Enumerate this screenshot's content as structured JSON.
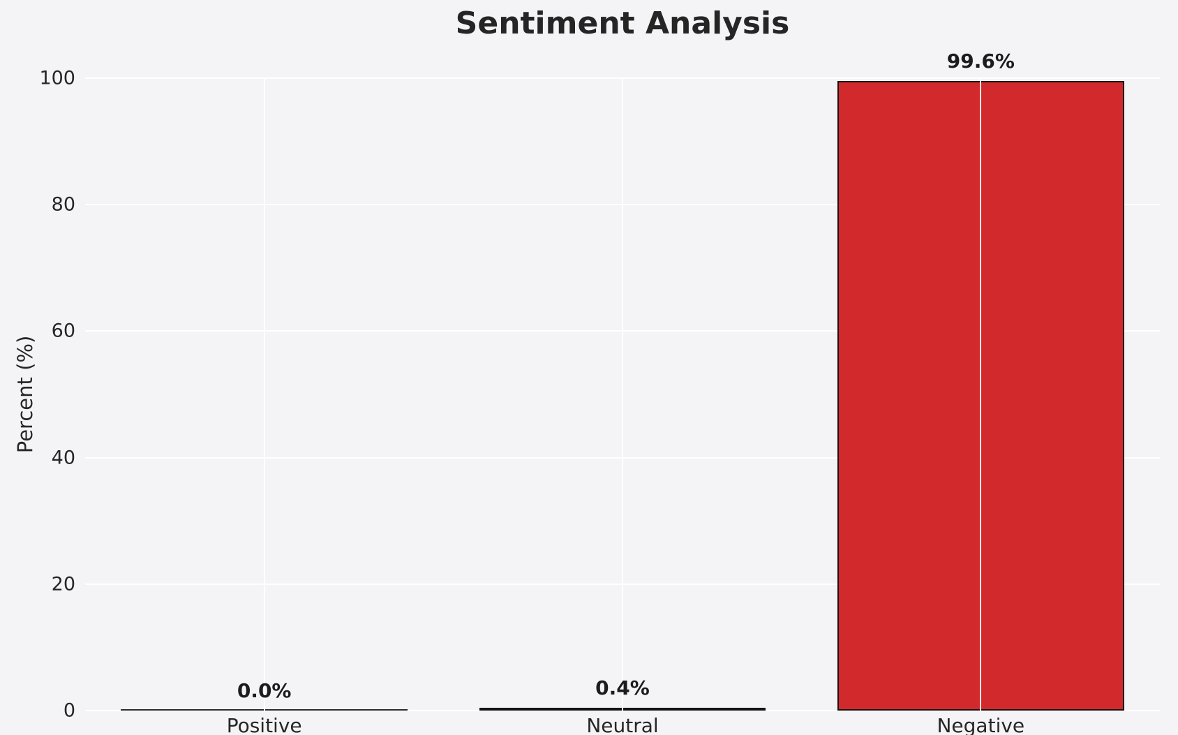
{
  "chart_data": {
    "type": "bar",
    "title": "Sentiment Analysis",
    "ylabel": "Percent (%)",
    "xlabel": "",
    "categories": [
      "Positive",
      "Neutral",
      "Negative"
    ],
    "values": [
      0.0,
      0.4,
      99.6
    ],
    "value_labels": [
      "0.0%",
      "0.4%",
      "99.6%"
    ],
    "bar_colors": [
      "#4daf4a",
      "#efe33d",
      "#d2292d"
    ],
    "bar_edge_color": "#141414",
    "ylim": [
      0,
      100
    ],
    "yticks": [
      0,
      20,
      40,
      60,
      80,
      100
    ],
    "grid": true,
    "grid_color": "#ffffff",
    "background_color": "#f4f4f6",
    "legend": "none"
  }
}
